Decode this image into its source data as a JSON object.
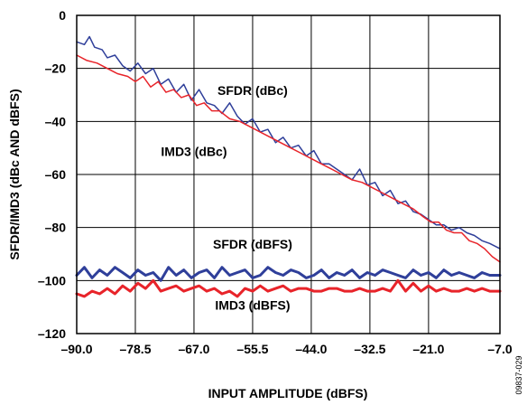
{
  "chart_data": {
    "type": "line",
    "xlabel": "INPUT AMPLITUDE (dBFS)",
    "ylabel": "SFDR/IMD3 (dBc AND dBFS)",
    "xlim": [
      -90.0,
      -7.0
    ],
    "ylim": [
      -120,
      0
    ],
    "x_ticks": [
      -90.0,
      -78.5,
      -67.0,
      -55.5,
      -44.0,
      -32.5,
      -21.0,
      -7.0
    ],
    "x_tick_labels": [
      "–90.0",
      "–78.5",
      "–67.0",
      "–55.5",
      "–44.0",
      "–32.5",
      "–21.0",
      "–7.0"
    ],
    "y_ticks": [
      0,
      -20,
      -40,
      -60,
      -80,
      -100,
      -120
    ],
    "y_tick_labels": [
      "0",
      "–20",
      "–40",
      "–60",
      "–80",
      "–100",
      "–120"
    ],
    "grid": true,
    "figure_id": "09837-029",
    "series": [
      {
        "name": "SFDR (dBc)",
        "color": "#2f3f9a",
        "line_width": "thin",
        "x": [
          -90,
          -88.5,
          -87.5,
          -86.5,
          -85,
          -84,
          -82.5,
          -81,
          -79.5,
          -78,
          -76.5,
          -75,
          -73.5,
          -72,
          -70.5,
          -69,
          -67.5,
          -66,
          -64.5,
          -63,
          -61.5,
          -60,
          -58.5,
          -57,
          -55.5,
          -54,
          -52.5,
          -51,
          -49.5,
          -48,
          -46.5,
          -45,
          -43.5,
          -42,
          -40.5,
          -39,
          -37.5,
          -36,
          -34.5,
          -33,
          -31.5,
          -30,
          -28.5,
          -27,
          -25.5,
          -24,
          -22.5,
          -21,
          -19.5,
          -18,
          -16.5,
          -15,
          -13.5,
          -12,
          -10.5,
          -9,
          -7
        ],
        "y": [
          -10,
          -11,
          -8,
          -12,
          -13,
          -16,
          -15,
          -19,
          -21,
          -18,
          -22,
          -20,
          -26,
          -24,
          -29,
          -26,
          -32,
          -28,
          -33,
          -34,
          -37,
          -33,
          -38,
          -41,
          -39,
          -44,
          -43,
          -48,
          -46,
          -50,
          -49,
          -53,
          -51,
          -56,
          -56,
          -58,
          -60,
          -62,
          -58,
          -64,
          -63,
          -68,
          -66,
          -71,
          -70,
          -74,
          -75,
          -77,
          -79,
          -79,
          -81,
          -80,
          -82,
          -83,
          -85,
          -86,
          -88
        ]
      },
      {
        "name": "IMD3 (dBc)",
        "color": "#e8242a",
        "line_width": "thin",
        "x": [
          -90,
          -88,
          -86,
          -84,
          -82,
          -80,
          -78.5,
          -77,
          -75.5,
          -74,
          -72.5,
          -71,
          -69.5,
          -68,
          -66.5,
          -65,
          -63.5,
          -62,
          -60,
          -58,
          -56,
          -54,
          -52,
          -50,
          -48,
          -46,
          -44,
          -42,
          -40,
          -38,
          -36,
          -34,
          -32,
          -30,
          -28,
          -26,
          -24,
          -22,
          -20.5,
          -19,
          -17.5,
          -16,
          -14.5,
          -13,
          -11.5,
          -10,
          -8.5,
          -7
        ],
        "y": [
          -15,
          -17,
          -18,
          -20,
          -22,
          -23,
          -25,
          -23,
          -27,
          -25,
          -29,
          -28,
          -31,
          -30,
          -34,
          -33,
          -36,
          -36,
          -39,
          -40,
          -42,
          -44,
          -46,
          -48,
          -50,
          -52,
          -54,
          -56,
          -58,
          -60,
          -62,
          -63,
          -65,
          -67,
          -69,
          -71,
          -73,
          -76,
          -78,
          -78,
          -81,
          -82,
          -82,
          -85,
          -86,
          -88,
          -91,
          -93
        ]
      },
      {
        "name": "SFDR (dBFS)",
        "color": "#2f3f9a",
        "line_width": "thick",
        "x": [
          -90,
          -88.5,
          -87,
          -85.5,
          -84,
          -82.5,
          -81,
          -79.5,
          -78,
          -76.5,
          -75,
          -73.5,
          -72,
          -70.5,
          -69,
          -67.5,
          -66,
          -64.5,
          -63,
          -61.5,
          -60,
          -58.5,
          -57,
          -55.5,
          -54,
          -52.5,
          -51,
          -49.5,
          -48,
          -46.5,
          -45,
          -43.5,
          -42,
          -40.5,
          -39,
          -37.5,
          -36,
          -34.5,
          -33,
          -31.5,
          -30,
          -28.5,
          -27,
          -25.5,
          -24,
          -22.5,
          -21,
          -19.5,
          -18,
          -16.5,
          -15,
          -13.5,
          -12,
          -10.5,
          -9,
          -7
        ],
        "y": [
          -98,
          -95,
          -99,
          -96,
          -98,
          -95,
          -97,
          -99,
          -96,
          -98,
          -97,
          -100,
          -95,
          -98,
          -96,
          -99,
          -97,
          -96,
          -99,
          -95,
          -98,
          -97,
          -96,
          -99,
          -98,
          -95,
          -97,
          -98,
          -96,
          -97,
          -99,
          -98,
          -96,
          -99,
          -97,
          -98,
          -96,
          -99,
          -97,
          -98,
          -96,
          -97,
          -98,
          -99,
          -96,
          -98,
          -97,
          -99,
          -96,
          -98,
          -97,
          -98,
          -99,
          -97,
          -98,
          -98
        ]
      },
      {
        "name": "IMD3 (dBFS)",
        "color": "#e8242a",
        "line_width": "thick",
        "x": [
          -90,
          -88.5,
          -87,
          -85.5,
          -84,
          -82.5,
          -81,
          -79.5,
          -78,
          -76.5,
          -75,
          -73.5,
          -72,
          -70.5,
          -69,
          -67.5,
          -66,
          -64.5,
          -63,
          -61.5,
          -60,
          -58.5,
          -57,
          -55.5,
          -54,
          -52.5,
          -51,
          -49.5,
          -48,
          -46.5,
          -45,
          -43.5,
          -42,
          -40.5,
          -39,
          -37.5,
          -36,
          -34.5,
          -33,
          -31.5,
          -30,
          -28.5,
          -27,
          -25.5,
          -24,
          -22.5,
          -21,
          -19.5,
          -18,
          -16.5,
          -15,
          -13.5,
          -12,
          -10.5,
          -9,
          -7
        ],
        "y": [
          -105,
          -106,
          -104,
          -105,
          -103,
          -105,
          -102,
          -104,
          -101,
          -103,
          -100,
          -104,
          -103,
          -102,
          -104,
          -103,
          -102,
          -104,
          -103,
          -105,
          -104,
          -106,
          -103,
          -104,
          -102,
          -104,
          -103,
          -102,
          -104,
          -103,
          -103,
          -104,
          -104,
          -103,
          -103,
          -104,
          -104,
          -103,
          -104,
          -104,
          -103,
          -104,
          -100,
          -104,
          -101,
          -104,
          -102,
          -104,
          -103,
          -104,
          -104,
          -103,
          -104,
          -103,
          -104,
          -104
        ]
      }
    ],
    "annotations": [
      {
        "text": "SFDR (dBc)",
        "x": -55.5,
        "y": -30
      },
      {
        "text": "IMD3 (dBc)",
        "x": -67.0,
        "y": -53
      },
      {
        "text": "SFDR (dBFS)",
        "x": -55.5,
        "y": -88
      },
      {
        "text": "IMD3 (dBFS)",
        "x": -55.5,
        "y": -111
      }
    ]
  }
}
